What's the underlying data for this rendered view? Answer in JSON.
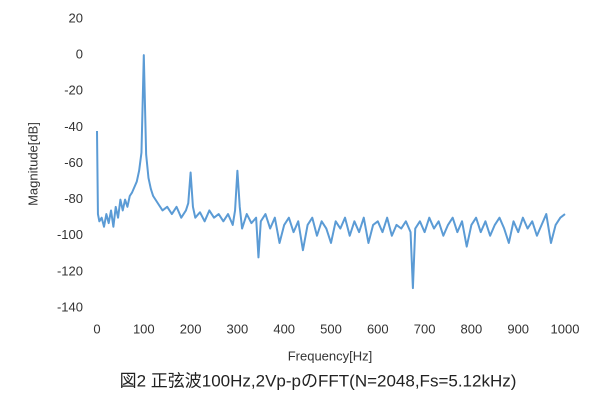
{
  "chart_data": {
    "type": "line",
    "x_label": "Frequency[Hz]",
    "y_label": "Magnitude[dB]",
    "caption": "図2 正弦波100Hz,2Vp-pのFFT(N=2048,Fs=5.12kHz)",
    "x": [
      0,
      2,
      5,
      10,
      15,
      20,
      25,
      30,
      35,
      40,
      45,
      50,
      55,
      60,
      65,
      70,
      75,
      80,
      85,
      90,
      95,
      100,
      105,
      110,
      115,
      120,
      125,
      130,
      140,
      150,
      160,
      170,
      180,
      190,
      195,
      200,
      205,
      210,
      220,
      230,
      240,
      250,
      260,
      270,
      280,
      290,
      295,
      300,
      305,
      310,
      320,
      330,
      340,
      345,
      350,
      360,
      370,
      380,
      390,
      400,
      410,
      420,
      430,
      440,
      450,
      460,
      470,
      480,
      490,
      500,
      510,
      520,
      530,
      540,
      550,
      560,
      570,
      580,
      590,
      600,
      610,
      620,
      630,
      640,
      650,
      660,
      670,
      675,
      680,
      690,
      700,
      710,
      720,
      730,
      740,
      750,
      760,
      770,
      780,
      790,
      800,
      810,
      820,
      830,
      840,
      850,
      860,
      870,
      880,
      890,
      900,
      910,
      920,
      930,
      940,
      950,
      960,
      970,
      980,
      990,
      1000
    ],
    "series": [
      {
        "name": "Magnitude",
        "color": "#5b9bd5",
        "values": [
          -42,
          -88,
          -92,
          -90,
          -95,
          -88,
          -93,
          -86,
          -95,
          -84,
          -90,
          -80,
          -86,
          -80,
          -84,
          -78,
          -76,
          -73,
          -70,
          -64,
          -54,
          0,
          -55,
          -68,
          -74,
          -78,
          -80,
          -82,
          -86,
          -84,
          -88,
          -84,
          -90,
          -86,
          -82,
          -65,
          -84,
          -90,
          -87,
          -92,
          -86,
          -90,
          -88,
          -92,
          -88,
          -94,
          -86,
          -64,
          -84,
          -96,
          -88,
          -93,
          -90,
          -112,
          -92,
          -88,
          -96,
          -90,
          -104,
          -94,
          -90,
          -98,
          -92,
          -108,
          -94,
          -90,
          -100,
          -92,
          -96,
          -104,
          -92,
          -96,
          -90,
          -100,
          -92,
          -98,
          -90,
          -104,
          -94,
          -92,
          -98,
          -90,
          -100,
          -94,
          -96,
          -92,
          -98,
          -129,
          -96,
          -92,
          -98,
          -90,
          -96,
          -92,
          -100,
          -94,
          -90,
          -98,
          -92,
          -106,
          -94,
          -90,
          -98,
          -92,
          -100,
          -94,
          -90,
          -96,
          -104,
          -92,
          -98,
          -90,
          -96,
          -92,
          -100,
          -94,
          -88,
          -104,
          -94,
          -90,
          -88
        ]
      }
    ],
    "xlim": [
      0,
      1000
    ],
    "xticks": [
      0,
      100,
      200,
      300,
      400,
      500,
      600,
      700,
      800,
      900,
      1000
    ],
    "ylim": [
      -140,
      20
    ],
    "yticks": [
      -140,
      -120,
      -100,
      -80,
      -60,
      -40,
      -20,
      0,
      20
    ],
    "grid": false
  }
}
